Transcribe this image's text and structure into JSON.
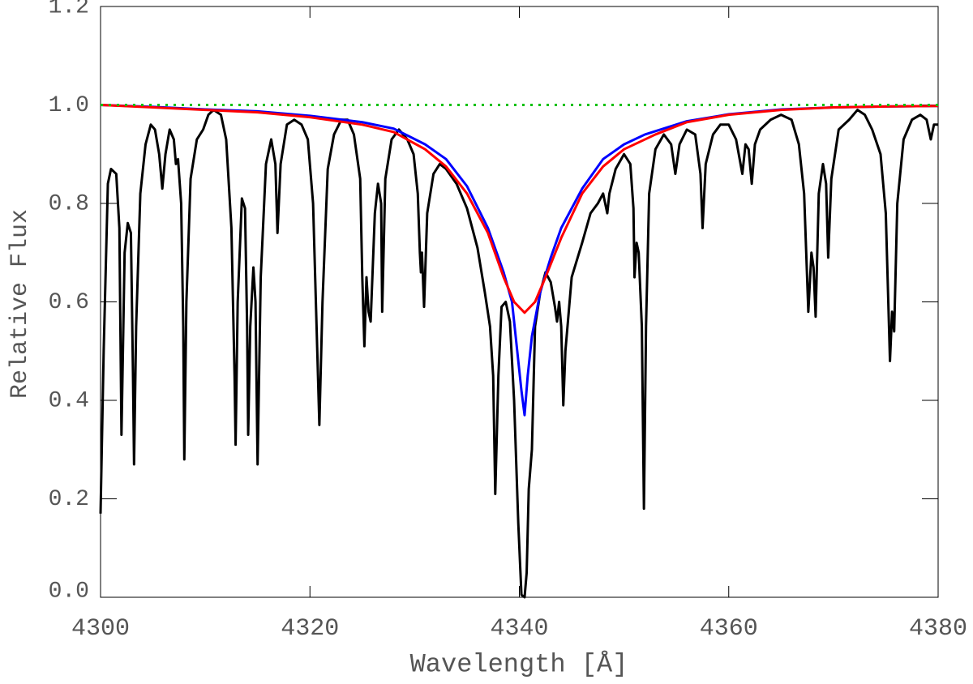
{
  "chart_data": {
    "type": "line",
    "xlabel": "Wavelength [Å]",
    "ylabel": "Relative Flux",
    "xlim": [
      4300,
      4380
    ],
    "xticks": [
      4300,
      4320,
      4340,
      4360,
      4380
    ],
    "ylim": [
      0,
      1.2
    ],
    "yticks": [
      {
        "value": 0,
        "label": "0.0"
      },
      0.2,
      0.4,
      0.6,
      0.8,
      {
        "value": 1,
        "label": "1.0"
      },
      1.2
    ],
    "series": [
      {
        "color": "#000000",
        "linestyle": "solid",
        "x": [
          4300.0,
          4300.3,
          4300.7,
          4301.0,
          4301.5,
          4301.8,
          4302.0,
          4302.3,
          4302.6,
          4302.9,
          4303.1,
          4303.2,
          4303.4,
          4303.8,
          4304.3,
          4304.8,
          4305.2,
          4305.6,
          4305.9,
          4306.2,
          4306.6,
          4307.0,
          4307.2,
          4307.4,
          4307.7,
          4307.9,
          4308.0,
          4308.2,
          4308.6,
          4309.2,
          4309.8,
          4310.3,
          4310.8,
          4311.5,
          4312.0,
          4312.5,
          4312.8,
          4312.9,
          4313.1,
          4313.5,
          4313.8,
          4314.0,
          4314.1,
          4314.3,
          4314.6,
          4314.8,
          4315.0,
          4315.3,
          4315.8,
          4316.3,
          4316.7,
          4316.9,
          4317.2,
          4317.8,
          4318.5,
          4319.2,
          4319.8,
          4320.3,
          4320.7,
          4320.9,
          4321.2,
          4321.7,
          4322.3,
          4323.0,
          4323.6,
          4324.2,
          4324.8,
          4325.0,
          4325.2,
          4325.4,
          4325.6,
          4325.8,
          4326.2,
          4326.5,
          4326.8,
          4326.9,
          4327.2,
          4327.8,
          4328.5,
          4329.3,
          4329.9,
          4330.3,
          4330.5,
          4330.6,
          4330.7,
          4330.9,
          4331.2,
          4331.8,
          4332.4,
          4333.0,
          4334.0,
          4335.0,
          4336.0,
          4336.7,
          4337.2,
          4337.5,
          4337.7,
          4338.0,
          4338.3,
          4338.7,
          4339.1,
          4339.5,
          4339.9,
          4340.2,
          4340.5,
          4340.7,
          4340.9,
          4341.2,
          4341.5,
          4342.0,
          4342.5,
          4343.0,
          4343.4,
          4343.6,
          4343.8,
          4344.0,
          4344.2,
          4344.4,
          4345.0,
          4346.0,
          4346.8,
          4347.5,
          4348.0,
          4348.4,
          4348.6,
          4349.2,
          4350.0,
          4350.6,
          4350.9,
          4351.0,
          4351.2,
          4351.4,
          4351.7,
          4351.9,
          4352.1,
          4352.4,
          4353.0,
          4353.8,
          4354.5,
          4354.9,
          4355.3,
          4356.0,
          4356.8,
          4357.3,
          4357.5,
          4357.8,
          4358.5,
          4359.2,
          4360.0,
          4360.7,
          4361.3,
          4361.6,
          4361.9,
          4362.2,
          4362.5,
          4363.0,
          4364.0,
          4365.0,
          4366.0,
          4366.7,
          4367.2,
          4367.6,
          4367.9,
          4368.1,
          4368.3,
          4368.6,
          4369.0,
          4369.3,
          4369.5,
          4369.8,
          4370.5,
          4371.5,
          4372.3,
          4373.0,
          4373.7,
          4374.5,
          4375.0,
          4375.4,
          4375.6,
          4375.8,
          4376.1,
          4376.7,
          4377.5,
          4378.3,
          4378.9,
          4379.3,
          4379.6,
          4380.0
        ],
        "values": [
          0.17,
          0.5,
          0.84,
          0.87,
          0.86,
          0.75,
          0.33,
          0.7,
          0.76,
          0.74,
          0.45,
          0.27,
          0.55,
          0.82,
          0.92,
          0.96,
          0.95,
          0.9,
          0.83,
          0.9,
          0.95,
          0.93,
          0.88,
          0.89,
          0.8,
          0.55,
          0.28,
          0.6,
          0.85,
          0.93,
          0.95,
          0.98,
          0.99,
          0.98,
          0.93,
          0.75,
          0.45,
          0.31,
          0.6,
          0.81,
          0.79,
          0.55,
          0.33,
          0.55,
          0.67,
          0.6,
          0.27,
          0.65,
          0.88,
          0.93,
          0.88,
          0.74,
          0.88,
          0.96,
          0.97,
          0.96,
          0.93,
          0.8,
          0.5,
          0.35,
          0.6,
          0.87,
          0.94,
          0.97,
          0.97,
          0.94,
          0.85,
          0.65,
          0.51,
          0.65,
          0.58,
          0.56,
          0.78,
          0.84,
          0.8,
          0.58,
          0.85,
          0.93,
          0.95,
          0.93,
          0.9,
          0.82,
          0.7,
          0.66,
          0.7,
          0.59,
          0.78,
          0.86,
          0.88,
          0.87,
          0.84,
          0.79,
          0.71,
          0.62,
          0.55,
          0.45,
          0.21,
          0.45,
          0.59,
          0.6,
          0.56,
          0.4,
          0.15,
          0.005,
          0.0,
          0.05,
          0.22,
          0.3,
          0.55,
          0.62,
          0.66,
          0.64,
          0.59,
          0.56,
          0.6,
          0.55,
          0.39,
          0.5,
          0.65,
          0.72,
          0.78,
          0.8,
          0.82,
          0.78,
          0.82,
          0.87,
          0.9,
          0.88,
          0.79,
          0.65,
          0.72,
          0.7,
          0.55,
          0.18,
          0.55,
          0.82,
          0.91,
          0.94,
          0.92,
          0.86,
          0.92,
          0.95,
          0.94,
          0.86,
          0.75,
          0.88,
          0.94,
          0.96,
          0.96,
          0.93,
          0.86,
          0.92,
          0.91,
          0.84,
          0.92,
          0.95,
          0.97,
          0.98,
          0.97,
          0.92,
          0.82,
          0.58,
          0.7,
          0.67,
          0.57,
          0.82,
          0.88,
          0.84,
          0.69,
          0.85,
          0.95,
          0.97,
          0.99,
          0.98,
          0.95,
          0.9,
          0.78,
          0.48,
          0.58,
          0.54,
          0.8,
          0.93,
          0.97,
          0.98,
          0.97,
          0.93,
          0.96,
          0.96
        ]
      },
      {
        "color": "#0000ff",
        "linestyle": "solid",
        "x": [
          4300,
          4305,
          4310,
          4315,
          4320,
          4325,
          4328,
          4331,
          4333,
          4335,
          4337,
          4338.5,
          4339.3,
          4339.8,
          4340.2,
          4340.5,
          4340.8,
          4341.2,
          4342,
          4343,
          4344,
          4346,
          4348,
          4350,
          4352,
          4356,
          4360,
          4365,
          4370,
          4375,
          4380
        ],
        "values": [
          1.0,
          0.996,
          0.991,
          0.987,
          0.978,
          0.965,
          0.952,
          0.92,
          0.89,
          0.835,
          0.75,
          0.66,
          0.6,
          0.5,
          0.42,
          0.37,
          0.45,
          0.53,
          0.62,
          0.69,
          0.75,
          0.83,
          0.89,
          0.92,
          0.94,
          0.967,
          0.981,
          0.991,
          0.995,
          0.997,
          0.998
        ]
      },
      {
        "color": "#ff0000",
        "linestyle": "solid",
        "x": [
          4300,
          4305,
          4310,
          4315,
          4320,
          4325,
          4328,
          4331,
          4333,
          4335,
          4337,
          4338.5,
          4339.5,
          4340.5,
          4341.5,
          4342.5,
          4344,
          4346,
          4348,
          4350,
          4353,
          4356,
          4360,
          4365,
          4370,
          4375,
          4380
        ],
        "values": [
          1.0,
          0.995,
          0.99,
          0.985,
          0.975,
          0.96,
          0.945,
          0.91,
          0.875,
          0.82,
          0.74,
          0.65,
          0.6,
          0.578,
          0.6,
          0.65,
          0.73,
          0.82,
          0.875,
          0.91,
          0.94,
          0.965,
          0.98,
          0.99,
          0.995,
          0.997,
          0.998
        ]
      },
      {
        "color": "#00c000",
        "linestyle": "dotted",
        "x": [
          4300,
          4380
        ],
        "values": [
          1.0,
          1.0
        ]
      }
    ]
  }
}
